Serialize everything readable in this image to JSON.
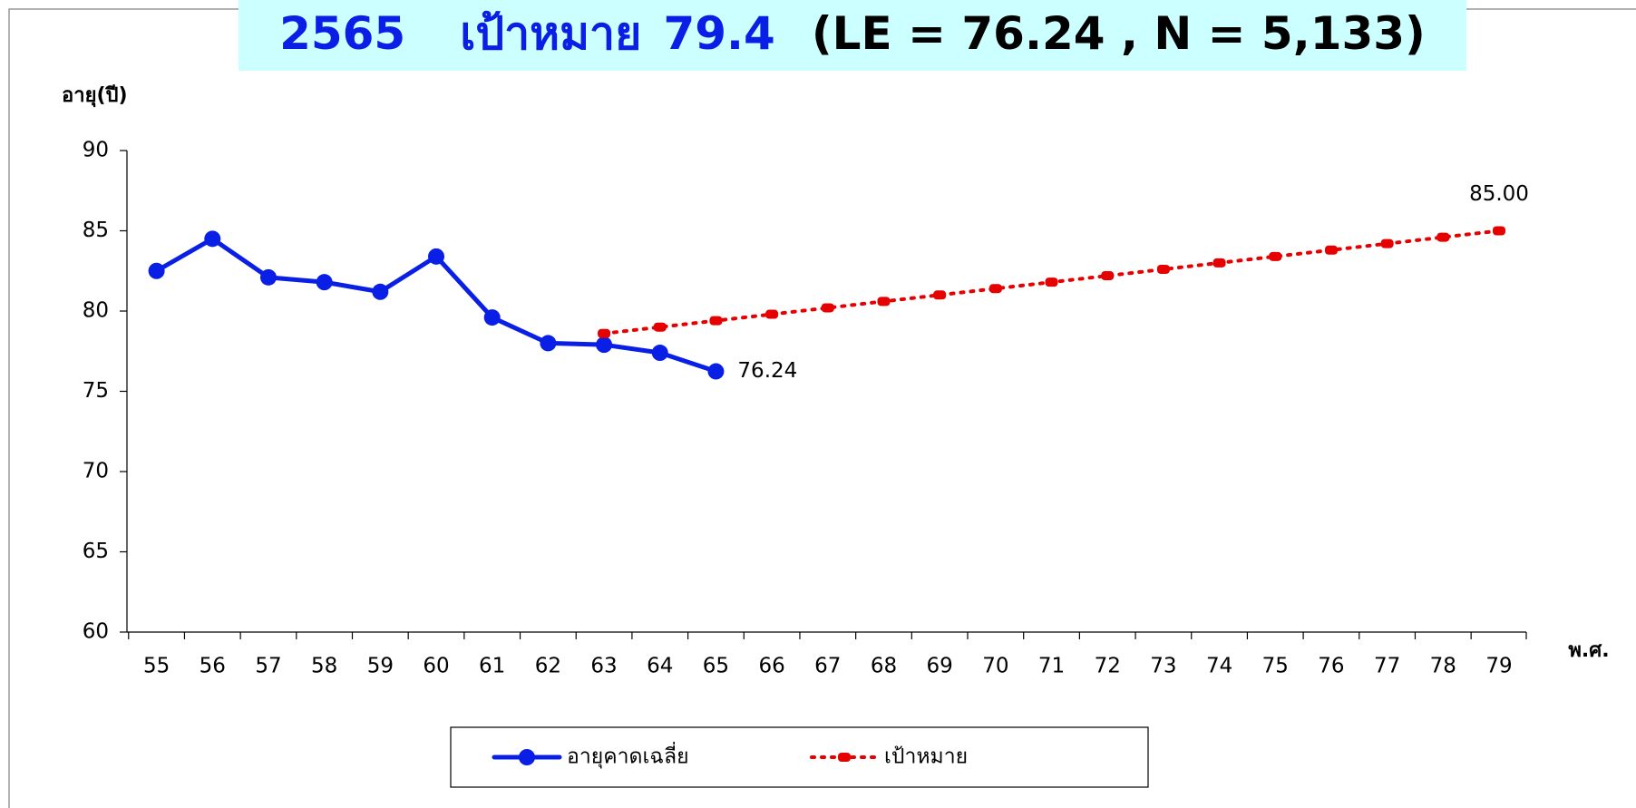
{
  "chart_data": {
    "type": "line",
    "title": {
      "year": "2565",
      "target_label": "เป้าหมาย",
      "target": "79.4",
      "detail": "(LE = 76.24 , N = 5,133)"
    },
    "y_label": "อายุ(ปี)",
    "x_label": "พ.ศ.",
    "categories": [
      "55",
      "56",
      "57",
      "58",
      "59",
      "60",
      "61",
      "62",
      "63",
      "64",
      "65",
      "66",
      "67",
      "68",
      "69",
      "70",
      "71",
      "72",
      "73",
      "74",
      "75",
      "76",
      "77",
      "78",
      "79"
    ],
    "series": [
      {
        "name": "อายุคาดเฉลี่ย",
        "color": "#0a1fe6",
        "values": [
          82.5,
          84.5,
          82.1,
          81.8,
          81.2,
          83.4,
          79.6,
          78.0,
          77.9,
          77.4,
          76.24,
          null,
          null,
          null,
          null,
          null,
          null,
          null,
          null,
          null,
          null,
          null,
          null,
          null,
          null
        ],
        "value_labels": [
          null,
          null,
          null,
          null,
          null,
          null,
          null,
          null,
          null,
          null,
          "76.24",
          null,
          null,
          null,
          null,
          null,
          null,
          null,
          null,
          null,
          null,
          null,
          null,
          null,
          null
        ]
      },
      {
        "name": "เป้าหมาย",
        "color": "#e60000",
        "values": [
          null,
          null,
          null,
          null,
          null,
          null,
          null,
          null,
          78.6,
          79.0,
          79.4,
          79.8,
          80.2,
          80.6,
          81.0,
          81.4,
          81.8,
          82.2,
          82.6,
          83.0,
          83.4,
          83.8,
          84.2,
          84.6,
          85.0
        ],
        "value_labels": [
          null,
          null,
          null,
          null,
          null,
          null,
          null,
          null,
          null,
          null,
          null,
          null,
          null,
          null,
          null,
          null,
          null,
          null,
          null,
          null,
          null,
          null,
          null,
          null,
          "85.00"
        ]
      }
    ],
    "ylim": [
      60,
      90
    ],
    "yticks": [
      60,
      65,
      70,
      75,
      80,
      85,
      90
    ]
  }
}
